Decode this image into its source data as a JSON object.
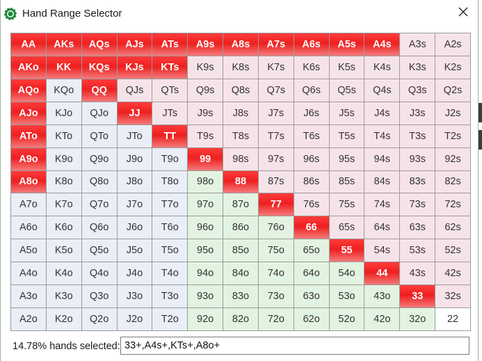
{
  "window": {
    "title": "Hand Range Selector",
    "icon": "poker-chip-icon",
    "close_icon": "close-icon"
  },
  "range_grid": {
    "rows": [
      [
        {
          "h": "AA",
          "s": 1
        },
        {
          "h": "AKs",
          "s": 1
        },
        {
          "h": "AQs",
          "s": 1
        },
        {
          "h": "AJs",
          "s": 1
        },
        {
          "h": "ATs",
          "s": 1
        },
        {
          "h": "A9s",
          "s": 1
        },
        {
          "h": "A8s",
          "s": 1
        },
        {
          "h": "A7s",
          "s": 1
        },
        {
          "h": "A6s",
          "s": 1
        },
        {
          "h": "A5s",
          "s": 1
        },
        {
          "h": "A4s",
          "s": 1
        },
        {
          "h": "A3s",
          "s": 0
        },
        {
          "h": "A2s",
          "s": 0
        }
      ],
      [
        {
          "h": "AKo",
          "s": 1
        },
        {
          "h": "KK",
          "s": 1
        },
        {
          "h": "KQs",
          "s": 1
        },
        {
          "h": "KJs",
          "s": 1
        },
        {
          "h": "KTs",
          "s": 1
        },
        {
          "h": "K9s",
          "s": 0
        },
        {
          "h": "K8s",
          "s": 0
        },
        {
          "h": "K7s",
          "s": 0
        },
        {
          "h": "K6s",
          "s": 0
        },
        {
          "h": "K5s",
          "s": 0
        },
        {
          "h": "K4s",
          "s": 0
        },
        {
          "h": "K3s",
          "s": 0
        },
        {
          "h": "K2s",
          "s": 0
        }
      ],
      [
        {
          "h": "AQo",
          "s": 1
        },
        {
          "h": "KQo",
          "s": 0
        },
        {
          "h": "QQ",
          "s": 1
        },
        {
          "h": "QJs",
          "s": 0
        },
        {
          "h": "QTs",
          "s": 0
        },
        {
          "h": "Q9s",
          "s": 0
        },
        {
          "h": "Q8s",
          "s": 0
        },
        {
          "h": "Q7s",
          "s": 0
        },
        {
          "h": "Q6s",
          "s": 0
        },
        {
          "h": "Q5s",
          "s": 0
        },
        {
          "h": "Q4s",
          "s": 0
        },
        {
          "h": "Q3s",
          "s": 0
        },
        {
          "h": "Q2s",
          "s": 0
        }
      ],
      [
        {
          "h": "AJo",
          "s": 1
        },
        {
          "h": "KJo",
          "s": 0
        },
        {
          "h": "QJo",
          "s": 0
        },
        {
          "h": "JJ",
          "s": 1
        },
        {
          "h": "JTs",
          "s": 0
        },
        {
          "h": "J9s",
          "s": 0
        },
        {
          "h": "J8s",
          "s": 0
        },
        {
          "h": "J7s",
          "s": 0
        },
        {
          "h": "J6s",
          "s": 0
        },
        {
          "h": "J5s",
          "s": 0
        },
        {
          "h": "J4s",
          "s": 0
        },
        {
          "h": "J3s",
          "s": 0
        },
        {
          "h": "J2s",
          "s": 0
        }
      ],
      [
        {
          "h": "ATo",
          "s": 1
        },
        {
          "h": "KTo",
          "s": 0
        },
        {
          "h": "QTo",
          "s": 0
        },
        {
          "h": "JTo",
          "s": 0
        },
        {
          "h": "TT",
          "s": 1
        },
        {
          "h": "T9s",
          "s": 0
        },
        {
          "h": "T8s",
          "s": 0
        },
        {
          "h": "T7s",
          "s": 0
        },
        {
          "h": "T6s",
          "s": 0
        },
        {
          "h": "T5s",
          "s": 0
        },
        {
          "h": "T4s",
          "s": 0
        },
        {
          "h": "T3s",
          "s": 0
        },
        {
          "h": "T2s",
          "s": 0
        }
      ],
      [
        {
          "h": "A9o",
          "s": 1
        },
        {
          "h": "K9o",
          "s": 0
        },
        {
          "h": "Q9o",
          "s": 0
        },
        {
          "h": "J9o",
          "s": 0
        },
        {
          "h": "T9o",
          "s": 0
        },
        {
          "h": "99",
          "s": 1
        },
        {
          "h": "98s",
          "s": 0
        },
        {
          "h": "97s",
          "s": 0
        },
        {
          "h": "96s",
          "s": 0
        },
        {
          "h": "95s",
          "s": 0
        },
        {
          "h": "94s",
          "s": 0
        },
        {
          "h": "93s",
          "s": 0
        },
        {
          "h": "92s",
          "s": 0
        }
      ],
      [
        {
          "h": "A8o",
          "s": 1
        },
        {
          "h": "K8o",
          "s": 0
        },
        {
          "h": "Q8o",
          "s": 0
        },
        {
          "h": "J8o",
          "s": 0
        },
        {
          "h": "T8o",
          "s": 0
        },
        {
          "h": "98o",
          "s": 0
        },
        {
          "h": "88",
          "s": 1
        },
        {
          "h": "87s",
          "s": 0
        },
        {
          "h": "86s",
          "s": 0
        },
        {
          "h": "85s",
          "s": 0
        },
        {
          "h": "84s",
          "s": 0
        },
        {
          "h": "83s",
          "s": 0
        },
        {
          "h": "82s",
          "s": 0
        }
      ],
      [
        {
          "h": "A7o",
          "s": 0
        },
        {
          "h": "K7o",
          "s": 0
        },
        {
          "h": "Q7o",
          "s": 0
        },
        {
          "h": "J7o",
          "s": 0
        },
        {
          "h": "T7o",
          "s": 0
        },
        {
          "h": "97o",
          "s": 0
        },
        {
          "h": "87o",
          "s": 0
        },
        {
          "h": "77",
          "s": 1
        },
        {
          "h": "76s",
          "s": 0
        },
        {
          "h": "75s",
          "s": 0
        },
        {
          "h": "74s",
          "s": 0
        },
        {
          "h": "73s",
          "s": 0
        },
        {
          "h": "72s",
          "s": 0
        }
      ],
      [
        {
          "h": "A6o",
          "s": 0
        },
        {
          "h": "K6o",
          "s": 0
        },
        {
          "h": "Q6o",
          "s": 0
        },
        {
          "h": "J6o",
          "s": 0
        },
        {
          "h": "T6o",
          "s": 0
        },
        {
          "h": "96o",
          "s": 0
        },
        {
          "h": "86o",
          "s": 0
        },
        {
          "h": "76o",
          "s": 0
        },
        {
          "h": "66",
          "s": 1
        },
        {
          "h": "65s",
          "s": 0
        },
        {
          "h": "64s",
          "s": 0
        },
        {
          "h": "63s",
          "s": 0
        },
        {
          "h": "62s",
          "s": 0
        }
      ],
      [
        {
          "h": "A5o",
          "s": 0
        },
        {
          "h": "K5o",
          "s": 0
        },
        {
          "h": "Q5o",
          "s": 0
        },
        {
          "h": "J5o",
          "s": 0
        },
        {
          "h": "T5o",
          "s": 0
        },
        {
          "h": "95o",
          "s": 0
        },
        {
          "h": "85o",
          "s": 0
        },
        {
          "h": "75o",
          "s": 0
        },
        {
          "h": "65o",
          "s": 0
        },
        {
          "h": "55",
          "s": 1
        },
        {
          "h": "54s",
          "s": 0
        },
        {
          "h": "53s",
          "s": 0
        },
        {
          "h": "52s",
          "s": 0
        }
      ],
      [
        {
          "h": "A4o",
          "s": 0
        },
        {
          "h": "K4o",
          "s": 0
        },
        {
          "h": "Q4o",
          "s": 0
        },
        {
          "h": "J4o",
          "s": 0
        },
        {
          "h": "T4o",
          "s": 0
        },
        {
          "h": "94o",
          "s": 0
        },
        {
          "h": "84o",
          "s": 0
        },
        {
          "h": "74o",
          "s": 0
        },
        {
          "h": "64o",
          "s": 0
        },
        {
          "h": "54o",
          "s": 0
        },
        {
          "h": "44",
          "s": 1
        },
        {
          "h": "43s",
          "s": 0
        },
        {
          "h": "42s",
          "s": 0
        }
      ],
      [
        {
          "h": "A3o",
          "s": 0
        },
        {
          "h": "K3o",
          "s": 0
        },
        {
          "h": "Q3o",
          "s": 0
        },
        {
          "h": "J3o",
          "s": 0
        },
        {
          "h": "T3o",
          "s": 0
        },
        {
          "h": "93o",
          "s": 0
        },
        {
          "h": "83o",
          "s": 0
        },
        {
          "h": "73o",
          "s": 0
        },
        {
          "h": "63o",
          "s": 0
        },
        {
          "h": "53o",
          "s": 0
        },
        {
          "h": "43o",
          "s": 0
        },
        {
          "h": "33",
          "s": 1
        },
        {
          "h": "32s",
          "s": 0
        }
      ],
      [
        {
          "h": "A2o",
          "s": 0
        },
        {
          "h": "K2o",
          "s": 0
        },
        {
          "h": "Q2o",
          "s": 0
        },
        {
          "h": "J2o",
          "s": 0
        },
        {
          "h": "T2o",
          "s": 0
        },
        {
          "h": "92o",
          "s": 0
        },
        {
          "h": "82o",
          "s": 0
        },
        {
          "h": "72o",
          "s": 0
        },
        {
          "h": "62o",
          "s": 0
        },
        {
          "h": "52o",
          "s": 0
        },
        {
          "h": "42o",
          "s": 0
        },
        {
          "h": "32o",
          "s": 0
        },
        {
          "h": "22",
          "s": 0
        }
      ]
    ],
    "colors": {
      "selected": "#ee1f1f",
      "suited": "#f6e3ea",
      "offsuit_blue": "#e9eef7",
      "offsuit_green": "#e3f3e1",
      "pair": "#ffffff"
    }
  },
  "footer": {
    "label": "14.78% hands selected:",
    "range_value": "33+,A4s+,KTs+,A8o+"
  }
}
